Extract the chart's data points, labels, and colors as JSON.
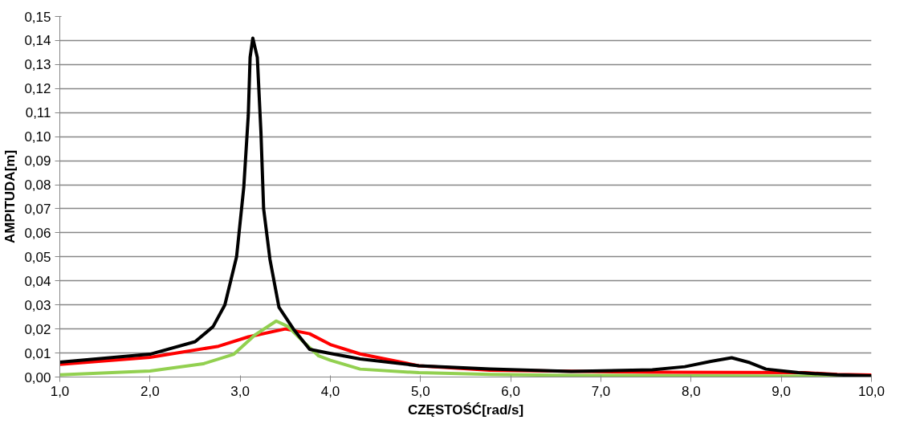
{
  "chart_data": {
    "type": "line",
    "xlabel": "CZĘSTOŚĆ[rad/s]",
    "ylabel": "AMPITUDA[m]",
    "xlim": [
      1.0,
      10.0
    ],
    "ylim": [
      0,
      0.15
    ],
    "xticks": [
      {
        "value": 1,
        "label": "1,0"
      },
      {
        "value": 2,
        "label": "2,0"
      },
      {
        "value": 3,
        "label": "3,0"
      },
      {
        "value": 4,
        "label": "4,0"
      },
      {
        "value": 5,
        "label": "5,0"
      },
      {
        "value": 6,
        "label": "6,0"
      },
      {
        "value": 7,
        "label": "7,0"
      },
      {
        "value": 8,
        "label": "8,0"
      },
      {
        "value": 9,
        "label": "9,0"
      },
      {
        "value": 10,
        "label": "10,0"
      }
    ],
    "yticks": [
      {
        "value": 0,
        "label": "0,00"
      },
      {
        "value": 0.01,
        "label": "0,01"
      },
      {
        "value": 0.02,
        "label": "0,02"
      },
      {
        "value": 0.03,
        "label": "0,03"
      },
      {
        "value": 0.04,
        "label": "0,04"
      },
      {
        "value": 0.05,
        "label": "0,05"
      },
      {
        "value": 0.06,
        "label": "0,06"
      },
      {
        "value": 0.07,
        "label": "0,07"
      },
      {
        "value": 0.08,
        "label": "0,08"
      },
      {
        "value": 0.09,
        "label": "0,09"
      },
      {
        "value": 0.1,
        "label": "0,10"
      },
      {
        "value": 0.11,
        "label": "0,11"
      },
      {
        "value": 0.12,
        "label": "0,12"
      },
      {
        "value": 0.13,
        "label": "0,13"
      },
      {
        "value": 0.14,
        "label": "0,14"
      },
      {
        "value": 0.15,
        "label": "0,15"
      }
    ],
    "grid": "y",
    "marker": "none",
    "line_style": "solid",
    "series": [
      {
        "color": "#ff0000",
        "x": [
          1.0,
          2.0,
          2.76,
          3.09,
          3.5,
          3.77,
          4.0,
          4.33,
          4.98,
          5.77,
          7.57,
          9.26,
          9.62,
          10.0
        ],
        "values": [
          0.0053,
          0.0082,
          0.0128,
          0.0167,
          0.02,
          0.018,
          0.0135,
          0.0096,
          0.0047,
          0.0028,
          0.002,
          0.0018,
          0.0011,
          0.0008
        ]
      },
      {
        "color": "#92d050",
        "x": [
          1.0,
          2.0,
          2.59,
          2.93,
          3.16,
          3.4,
          3.53,
          3.7,
          3.87,
          4.0,
          4.33,
          4.98,
          5.77,
          6.67,
          8.0,
          10.0
        ],
        "values": [
          0.0009,
          0.0025,
          0.0055,
          0.0095,
          0.0174,
          0.0233,
          0.021,
          0.0147,
          0.0088,
          0.007,
          0.0033,
          0.0018,
          0.0011,
          0.0007,
          0.0005,
          0.0003
        ]
      },
      {
        "color": "#000000",
        "x": [
          1.0,
          2.0,
          2.5,
          2.7,
          2.83,
          2.96,
          3.04,
          3.09,
          3.11,
          3.14,
          3.19,
          3.23,
          3.26,
          3.33,
          3.43,
          3.59,
          3.77,
          3.97,
          4.33,
          4.98,
          5.77,
          6.67,
          7.57,
          7.93,
          8.22,
          8.45,
          8.65,
          8.83,
          9.19,
          9.62,
          10.0
        ],
        "values": [
          0.0062,
          0.0095,
          0.0147,
          0.021,
          0.03,
          0.05,
          0.079,
          0.109,
          0.133,
          0.141,
          0.133,
          0.102,
          0.07,
          0.049,
          0.029,
          0.02,
          0.0115,
          0.01,
          0.0075,
          0.0047,
          0.0033,
          0.0023,
          0.003,
          0.0043,
          0.0065,
          0.008,
          0.006,
          0.0033,
          0.0018,
          0.0009,
          0.0005
        ]
      }
    ]
  }
}
